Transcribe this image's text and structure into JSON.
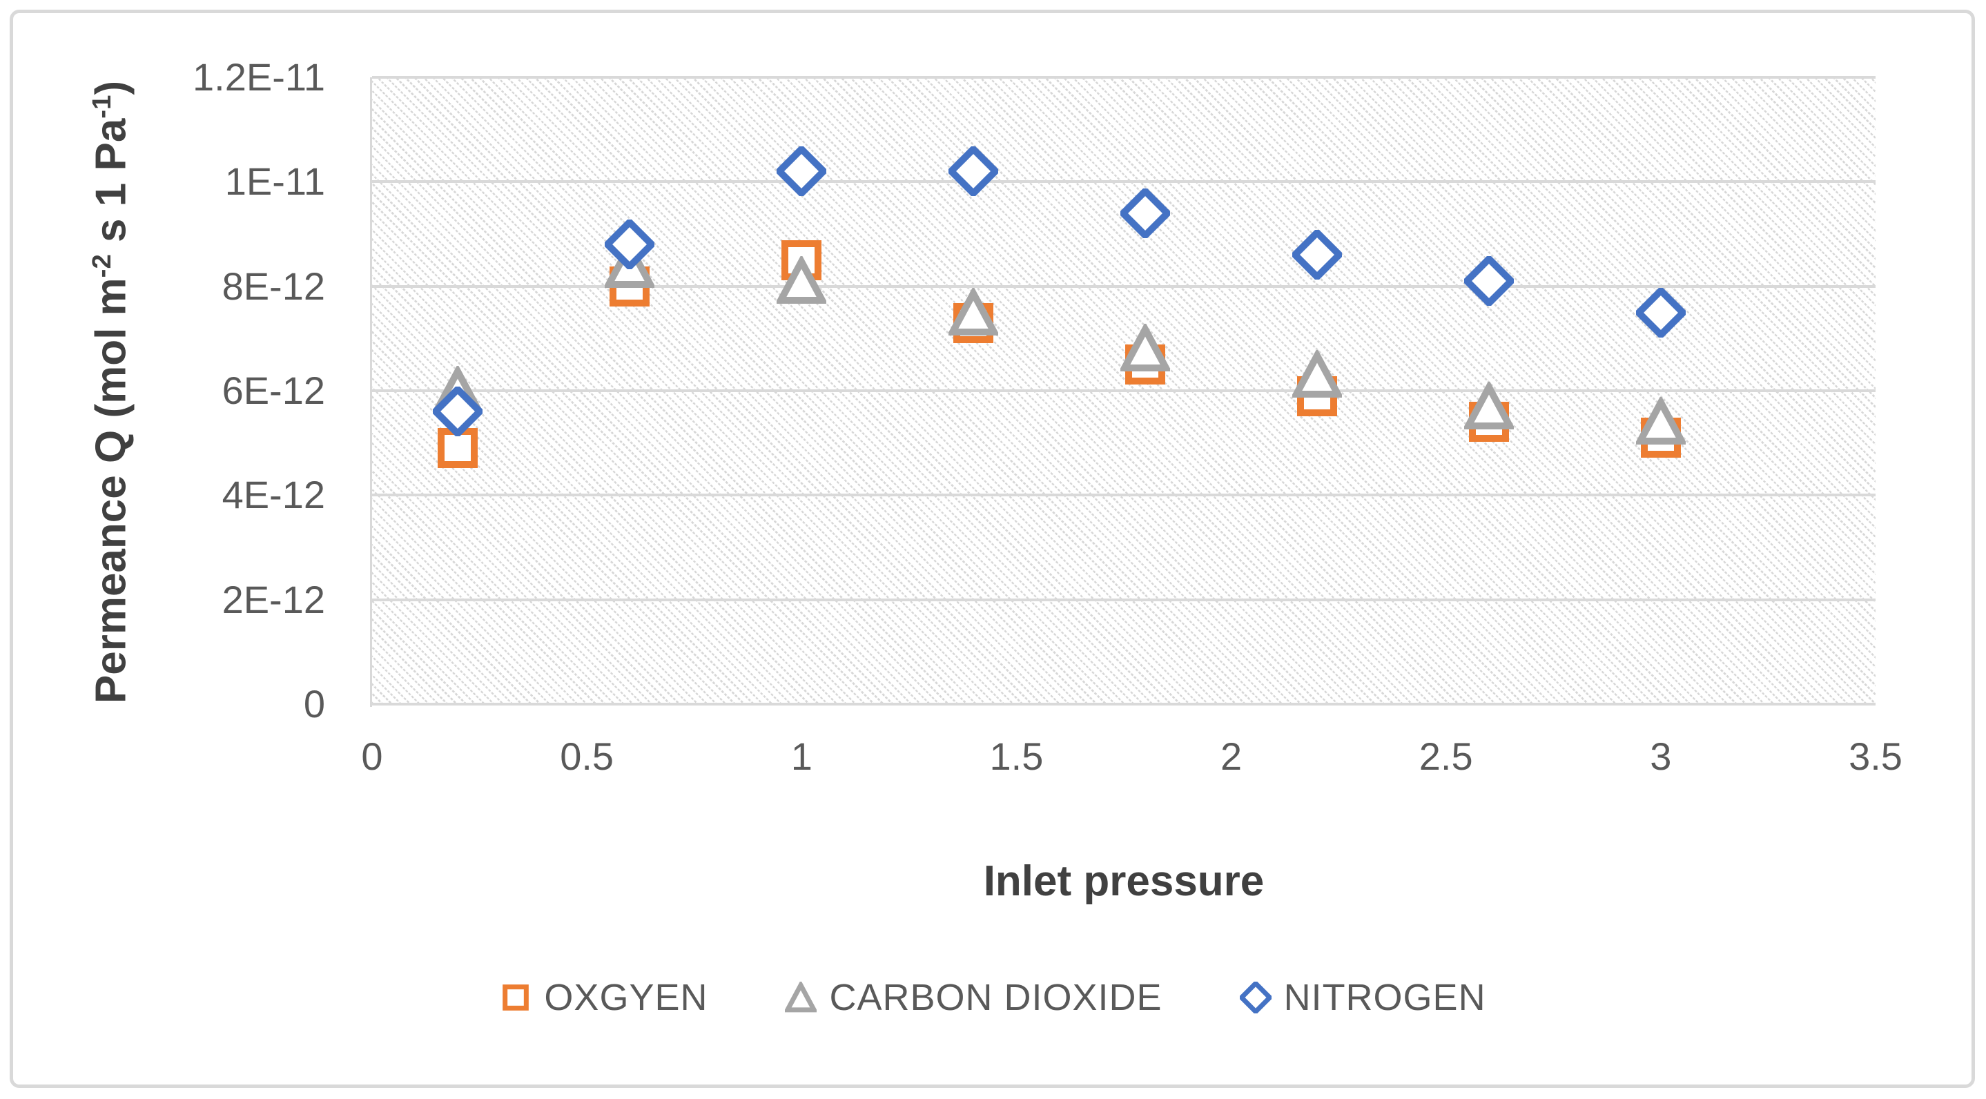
{
  "chart_data": {
    "type": "scatter",
    "title": "",
    "xlabel": "Inlet pressure",
    "ylabel": "Permeance Q (mol m-2 s 1 Pa-1)",
    "ylabel_parts": [
      {
        "text": "Permeance Q (mol m"
      },
      {
        "text": "-2",
        "sup": true
      },
      {
        "text": " s 1 Pa"
      },
      {
        "text": "-1",
        "sup": true
      },
      {
        "text": ")"
      }
    ],
    "xlim": [
      0,
      3.5
    ],
    "ylim": [
      0,
      1.2e-11
    ],
    "y_unit_scale": 1e-12,
    "x_ticks": [
      "0",
      "0.5",
      "1",
      "1.5",
      "2",
      "2.5",
      "3",
      "3.5"
    ],
    "y_ticks": [
      "0",
      "2E-12",
      "4E-12",
      "6E-12",
      "8E-12",
      "1E-11",
      "1.2E-11"
    ],
    "grid": "horizontal",
    "plot_area_fill": "light-downward-diagonal-hatch",
    "legend_position": "bottom",
    "x": [
      0.2,
      0.6,
      1.0,
      1.4,
      1.8,
      2.2,
      2.6,
      3.0
    ],
    "series": [
      {
        "name": "OXGYEN",
        "marker": "square",
        "color": "#ED7D31",
        "values_x1e12": [
          4.9,
          8.0,
          8.5,
          7.3,
          6.5,
          5.9,
          5.4,
          5.1
        ]
      },
      {
        "name": "CARBON DIOXIDE",
        "marker": "triangle",
        "color": "#A5A5A5",
        "values_x1e12": [
          6.0,
          8.4,
          8.1,
          7.5,
          6.8,
          6.3,
          5.7,
          5.4
        ]
      },
      {
        "name": "NITROGEN",
        "marker": "diamond",
        "color": "#4472C4",
        "values_x1e12": [
          5.6,
          8.8,
          10.2,
          10.2,
          9.4,
          8.6,
          8.1,
          7.5
        ]
      }
    ]
  },
  "colors": {
    "series_orange": "#ED7D31",
    "series_gray": "#A5A5A5",
    "series_blue": "#4472C4",
    "gridline": "#D9D9D9",
    "frame_border": "#D9D9D9",
    "tick_text": "#595959",
    "axis_title_text": "#404040"
  }
}
